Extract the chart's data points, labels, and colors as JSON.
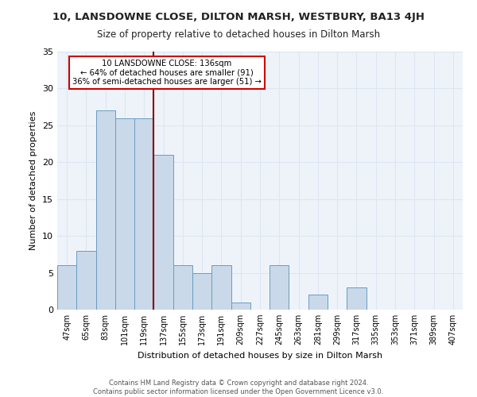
{
  "title": "10, LANSDOWNE CLOSE, DILTON MARSH, WESTBURY, BA13 4JH",
  "subtitle": "Size of property relative to detached houses in Dilton Marsh",
  "xlabel": "Distribution of detached houses by size in Dilton Marsh",
  "ylabel": "Number of detached properties",
  "categories": [
    "47sqm",
    "65sqm",
    "83sqm",
    "101sqm",
    "119sqm",
    "137sqm",
    "155sqm",
    "173sqm",
    "191sqm",
    "209sqm",
    "227sqm",
    "245sqm",
    "263sqm",
    "281sqm",
    "299sqm",
    "317sqm",
    "335sqm",
    "353sqm",
    "371sqm",
    "389sqm",
    "407sqm"
  ],
  "values": [
    6,
    8,
    27,
    26,
    26,
    21,
    6,
    5,
    6,
    1,
    0,
    6,
    0,
    2,
    0,
    3,
    0,
    0,
    0,
    0,
    0
  ],
  "bar_color": "#c9d9ea",
  "bar_edge_color": "#6a9cc0",
  "vline_color": "#8b0000",
  "vline_index": 5,
  "annotation_text_line1": "10 LANSDOWNE CLOSE: 136sqm",
  "annotation_text_line2": "← 64% of detached houses are smaller (91)",
  "annotation_text_line3": "36% of semi-detached houses are larger (51) →",
  "annotation_box_color": "#ffffff",
  "annotation_box_edge_color": "#cc0000",
  "grid_color": "#dce6f1",
  "background_color": "#eef3fa",
  "ylim": [
    0,
    35
  ],
  "yticks": [
    0,
    5,
    10,
    15,
    20,
    25,
    30,
    35
  ],
  "footer_line1": "Contains HM Land Registry data © Crown copyright and database right 2024.",
  "footer_line2": "Contains public sector information licensed under the Open Government Licence v3.0."
}
